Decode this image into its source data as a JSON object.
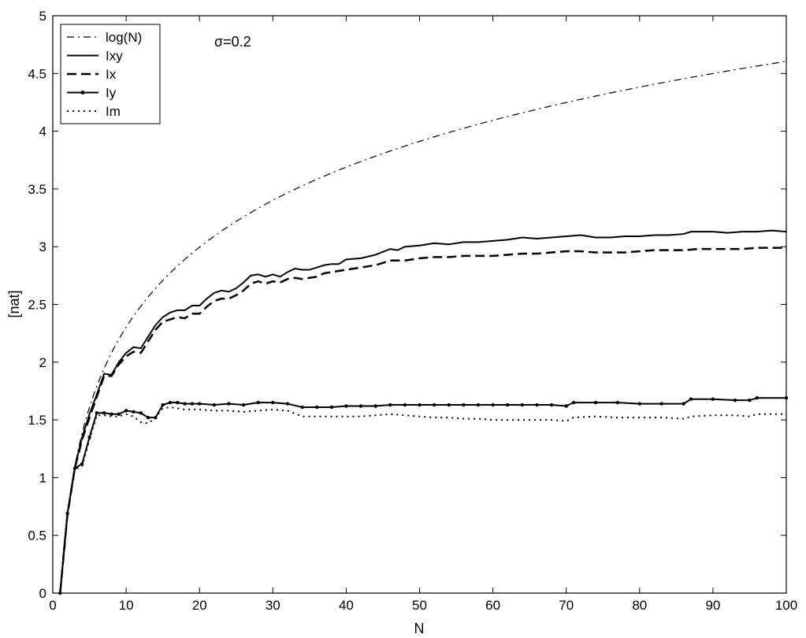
{
  "chart_data": {
    "type": "line",
    "title": "",
    "annotation": "σ=0.2",
    "xlabel": "N",
    "ylabel": "[nat]",
    "xlim": [
      0,
      100
    ],
    "ylim": [
      0,
      5
    ],
    "xticks": [
      0,
      10,
      20,
      30,
      40,
      50,
      60,
      70,
      80,
      90,
      100
    ],
    "yticks": [
      0,
      0.5,
      1,
      1.5,
      2,
      2.5,
      3,
      3.5,
      4,
      4.5,
      5
    ],
    "ytick_labels": [
      "0",
      "0.5",
      "1",
      "1.5",
      "2",
      "2.5",
      "3",
      "3.5",
      "4",
      "4.5",
      "5"
    ],
    "grid": false,
    "legend_position": "top-left",
    "series": [
      {
        "name": "log(N)",
        "style": "dashdot",
        "color": "#000000",
        "function": "log",
        "x_range": [
          1,
          100
        ]
      },
      {
        "name": "Ixy",
        "style": "solid",
        "color": "#000000",
        "points": [
          [
            1,
            0
          ],
          [
            2,
            0.69
          ],
          [
            3,
            1.09
          ],
          [
            4,
            1.35
          ],
          [
            5,
            1.55
          ],
          [
            6,
            1.72
          ],
          [
            7,
            1.9
          ],
          [
            8,
            1.89
          ],
          [
            9,
            2.0
          ],
          [
            10,
            2.08
          ],
          [
            11,
            2.13
          ],
          [
            12,
            2.12
          ],
          [
            13,
            2.22
          ],
          [
            14,
            2.32
          ],
          [
            15,
            2.39
          ],
          [
            16,
            2.43
          ],
          [
            17,
            2.45
          ],
          [
            18,
            2.45
          ],
          [
            19,
            2.49
          ],
          [
            20,
            2.49
          ],
          [
            21,
            2.55
          ],
          [
            22,
            2.6
          ],
          [
            23,
            2.62
          ],
          [
            24,
            2.61
          ],
          [
            25,
            2.64
          ],
          [
            26,
            2.69
          ],
          [
            27,
            2.75
          ],
          [
            28,
            2.76
          ],
          [
            29,
            2.74
          ],
          [
            30,
            2.76
          ],
          [
            31,
            2.74
          ],
          [
            32,
            2.78
          ],
          [
            33,
            2.81
          ],
          [
            34,
            2.8
          ],
          [
            35,
            2.8
          ],
          [
            36,
            2.82
          ],
          [
            37,
            2.84
          ],
          [
            38,
            2.85
          ],
          [
            39,
            2.85
          ],
          [
            40,
            2.89
          ],
          [
            42,
            2.9
          ],
          [
            44,
            2.93
          ],
          [
            46,
            2.98
          ],
          [
            47,
            2.97
          ],
          [
            48,
            3.0
          ],
          [
            50,
            3.01
          ],
          [
            52,
            3.03
          ],
          [
            54,
            3.02
          ],
          [
            56,
            3.04
          ],
          [
            58,
            3.04
          ],
          [
            60,
            3.05
          ],
          [
            62,
            3.06
          ],
          [
            64,
            3.08
          ],
          [
            66,
            3.07
          ],
          [
            68,
            3.08
          ],
          [
            70,
            3.09
          ],
          [
            72,
            3.1
          ],
          [
            74,
            3.08
          ],
          [
            76,
            3.08
          ],
          [
            78,
            3.09
          ],
          [
            80,
            3.09
          ],
          [
            82,
            3.1
          ],
          [
            84,
            3.1
          ],
          [
            86,
            3.11
          ],
          [
            87,
            3.13
          ],
          [
            90,
            3.13
          ],
          [
            92,
            3.12
          ],
          [
            94,
            3.13
          ],
          [
            96,
            3.13
          ],
          [
            98,
            3.14
          ],
          [
            100,
            3.13
          ]
        ]
      },
      {
        "name": "Ix",
        "style": "dashed",
        "color": "#000000",
        "points": [
          [
            1,
            0
          ],
          [
            2,
            0.68
          ],
          [
            3,
            1.08
          ],
          [
            4,
            1.33
          ],
          [
            5,
            1.52
          ],
          [
            6,
            1.7
          ],
          [
            7,
            1.88
          ],
          [
            8,
            1.88
          ],
          [
            9,
            1.98
          ],
          [
            10,
            2.05
          ],
          [
            11,
            2.09
          ],
          [
            12,
            2.08
          ],
          [
            13,
            2.18
          ],
          [
            14,
            2.28
          ],
          [
            15,
            2.35
          ],
          [
            16,
            2.37
          ],
          [
            17,
            2.39
          ],
          [
            18,
            2.38
          ],
          [
            19,
            2.42
          ],
          [
            20,
            2.42
          ],
          [
            21,
            2.48
          ],
          [
            22,
            2.53
          ],
          [
            23,
            2.55
          ],
          [
            24,
            2.55
          ],
          [
            25,
            2.58
          ],
          [
            26,
            2.62
          ],
          [
            27,
            2.68
          ],
          [
            28,
            2.7
          ],
          [
            29,
            2.68
          ],
          [
            30,
            2.7
          ],
          [
            31,
            2.69
          ],
          [
            32,
            2.72
          ],
          [
            33,
            2.73
          ],
          [
            34,
            2.72
          ],
          [
            35,
            2.73
          ],
          [
            36,
            2.74
          ],
          [
            37,
            2.77
          ],
          [
            38,
            2.78
          ],
          [
            40,
            2.8
          ],
          [
            42,
            2.82
          ],
          [
            44,
            2.84
          ],
          [
            46,
            2.88
          ],
          [
            48,
            2.88
          ],
          [
            50,
            2.9
          ],
          [
            52,
            2.91
          ],
          [
            54,
            2.91
          ],
          [
            56,
            2.92
          ],
          [
            58,
            2.92
          ],
          [
            60,
            2.92
          ],
          [
            62,
            2.93
          ],
          [
            64,
            2.94
          ],
          [
            66,
            2.94
          ],
          [
            68,
            2.95
          ],
          [
            70,
            2.96
          ],
          [
            72,
            2.96
          ],
          [
            74,
            2.95
          ],
          [
            76,
            2.95
          ],
          [
            78,
            2.95
          ],
          [
            80,
            2.96
          ],
          [
            82,
            2.97
          ],
          [
            84,
            2.97
          ],
          [
            86,
            2.97
          ],
          [
            88,
            2.98
          ],
          [
            90,
            2.98
          ],
          [
            92,
            2.98
          ],
          [
            94,
            2.98
          ],
          [
            96,
            2.99
          ],
          [
            98,
            2.99
          ],
          [
            100,
            2.99
          ]
        ]
      },
      {
        "name": "Iy",
        "style": "solid-markers",
        "color": "#000000",
        "points": [
          [
            1,
            0
          ],
          [
            2,
            0.69
          ],
          [
            3,
            1.08
          ],
          [
            4,
            1.12
          ],
          [
            5,
            1.35
          ],
          [
            6,
            1.56
          ],
          [
            7,
            1.56
          ],
          [
            8,
            1.55
          ],
          [
            9,
            1.55
          ],
          [
            10,
            1.58
          ],
          [
            11,
            1.57
          ],
          [
            12,
            1.56
          ],
          [
            13,
            1.52
          ],
          [
            14,
            1.52
          ],
          [
            15,
            1.63
          ],
          [
            16,
            1.65
          ],
          [
            17,
            1.65
          ],
          [
            18,
            1.64
          ],
          [
            19,
            1.64
          ],
          [
            20,
            1.64
          ],
          [
            22,
            1.63
          ],
          [
            24,
            1.64
          ],
          [
            26,
            1.63
          ],
          [
            28,
            1.65
          ],
          [
            30,
            1.65
          ],
          [
            32,
            1.64
          ],
          [
            34,
            1.61
          ],
          [
            36,
            1.61
          ],
          [
            38,
            1.61
          ],
          [
            40,
            1.62
          ],
          [
            42,
            1.62
          ],
          [
            44,
            1.62
          ],
          [
            46,
            1.63
          ],
          [
            48,
            1.63
          ],
          [
            50,
            1.63
          ],
          [
            52,
            1.63
          ],
          [
            54,
            1.63
          ],
          [
            56,
            1.63
          ],
          [
            58,
            1.63
          ],
          [
            60,
            1.63
          ],
          [
            62,
            1.63
          ],
          [
            64,
            1.63
          ],
          [
            66,
            1.63
          ],
          [
            68,
            1.63
          ],
          [
            70,
            1.62
          ],
          [
            71,
            1.65
          ],
          [
            74,
            1.65
          ],
          [
            77,
            1.65
          ],
          [
            80,
            1.64
          ],
          [
            83,
            1.64
          ],
          [
            86,
            1.64
          ],
          [
            87,
            1.68
          ],
          [
            90,
            1.68
          ],
          [
            93,
            1.67
          ],
          [
            95,
            1.67
          ],
          [
            96,
            1.69
          ],
          [
            100,
            1.69
          ]
        ]
      },
      {
        "name": "Im",
        "style": "dotted",
        "color": "#000000",
        "points": [
          [
            1,
            0
          ],
          [
            2,
            0.68
          ],
          [
            3,
            1.07
          ],
          [
            4,
            1.1
          ],
          [
            5,
            1.33
          ],
          [
            6,
            1.54
          ],
          [
            7,
            1.54
          ],
          [
            8,
            1.53
          ],
          [
            9,
            1.53
          ],
          [
            10,
            1.55
          ],
          [
            11,
            1.53
          ],
          [
            12,
            1.48
          ],
          [
            13,
            1.47
          ],
          [
            14,
            1.52
          ],
          [
            15,
            1.6
          ],
          [
            16,
            1.61
          ],
          [
            17,
            1.6
          ],
          [
            18,
            1.59
          ],
          [
            20,
            1.59
          ],
          [
            22,
            1.58
          ],
          [
            24,
            1.58
          ],
          [
            26,
            1.57
          ],
          [
            28,
            1.58
          ],
          [
            30,
            1.59
          ],
          [
            32,
            1.58
          ],
          [
            34,
            1.53
          ],
          [
            36,
            1.53
          ],
          [
            38,
            1.53
          ],
          [
            40,
            1.53
          ],
          [
            42,
            1.53
          ],
          [
            44,
            1.54
          ],
          [
            46,
            1.55
          ],
          [
            48,
            1.54
          ],
          [
            50,
            1.53
          ],
          [
            52,
            1.52
          ],
          [
            54,
            1.52
          ],
          [
            56,
            1.51
          ],
          [
            58,
            1.51
          ],
          [
            60,
            1.5
          ],
          [
            62,
            1.5
          ],
          [
            64,
            1.5
          ],
          [
            66,
            1.5
          ],
          [
            68,
            1.5
          ],
          [
            70,
            1.49
          ],
          [
            71,
            1.52
          ],
          [
            74,
            1.53
          ],
          [
            77,
            1.52
          ],
          [
            80,
            1.52
          ],
          [
            83,
            1.52
          ],
          [
            86,
            1.51
          ],
          [
            87,
            1.53
          ],
          [
            90,
            1.54
          ],
          [
            93,
            1.54
          ],
          [
            95,
            1.53
          ],
          [
            96,
            1.55
          ],
          [
            100,
            1.55
          ]
        ]
      }
    ]
  }
}
